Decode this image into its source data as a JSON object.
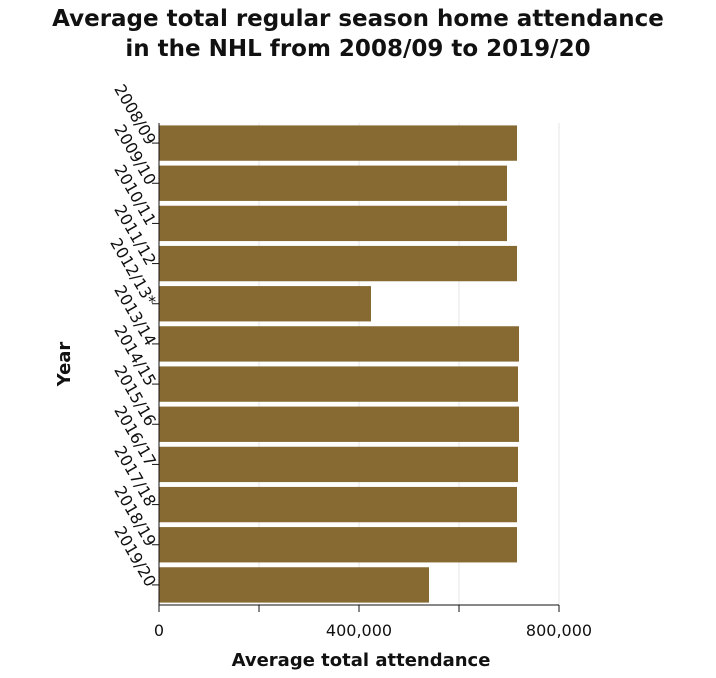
{
  "chart_data": {
    "type": "bar",
    "orientation": "horizontal",
    "title": "Average total regular season home attendance in the NHL from 2008/09 to 2019/20",
    "title_lines": [
      "Average total regular season home attendance",
      "in the NHL from 2008/09 to 2019/20"
    ],
    "xlabel": "Average total attendance",
    "ylabel": "Year",
    "categories": [
      "2008/09",
      "2009/10",
      "2010/11",
      "2011/12",
      "2012/13*",
      "2013/14",
      "2014/15",
      "2015/16",
      "2016/17",
      "2017/18",
      "2018/19",
      "2019/20"
    ],
    "values": [
      716000,
      696000,
      696000,
      716000,
      424000,
      720000,
      718000,
      720000,
      718000,
      716000,
      716000,
      540000
    ],
    "xlim": [
      0,
      800000
    ],
    "xticks": [
      0,
      200000,
      400000,
      600000,
      800000
    ],
    "xtick_labels": [
      "0",
      "",
      "400,000",
      "",
      "800,000"
    ],
    "bar_color": "#866a32",
    "grid": true,
    "grid_color": "#e6e6e6"
  }
}
